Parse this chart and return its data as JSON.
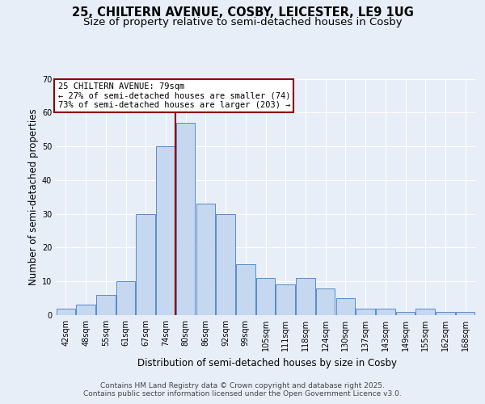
{
  "title_line1": "25, CHILTERN AVENUE, COSBY, LEICESTER, LE9 1UG",
  "title_line2": "Size of property relative to semi-detached houses in Cosby",
  "xlabel": "Distribution of semi-detached houses by size in Cosby",
  "ylabel": "Number of semi-detached properties",
  "categories": [
    "42sqm",
    "48sqm",
    "55sqm",
    "61sqm",
    "67sqm",
    "74sqm",
    "80sqm",
    "86sqm",
    "92sqm",
    "99sqm",
    "105sqm",
    "111sqm",
    "118sqm",
    "124sqm",
    "130sqm",
    "137sqm",
    "143sqm",
    "149sqm",
    "155sqm",
    "162sqm",
    "168sqm"
  ],
  "values": [
    2,
    3,
    6,
    10,
    30,
    50,
    57,
    33,
    30,
    15,
    11,
    9,
    11,
    8,
    5,
    2,
    2,
    1,
    2,
    1,
    1
  ],
  "bar_color": "#c5d8f0",
  "bar_edge_color": "#5a8ac6",
  "highlight_line_color": "#8b0000",
  "annotation_line1": "25 CHILTERN AVENUE: 79sqm",
  "annotation_line2": "← 27% of semi-detached houses are smaller (74)",
  "annotation_line3": "73% of semi-detached houses are larger (203) →",
  "ylim": [
    0,
    70
  ],
  "yticks": [
    0,
    10,
    20,
    30,
    40,
    50,
    60,
    70
  ],
  "bg_color": "#e8eef8",
  "footer_line1": "Contains HM Land Registry data © Crown copyright and database right 2025.",
  "footer_line2": "Contains public sector information licensed under the Open Government Licence v3.0.",
  "title_fontsize": 10.5,
  "subtitle_fontsize": 9.5,
  "axis_label_fontsize": 8.5,
  "tick_fontsize": 7,
  "annotation_fontsize": 7.5,
  "footer_fontsize": 6.5
}
